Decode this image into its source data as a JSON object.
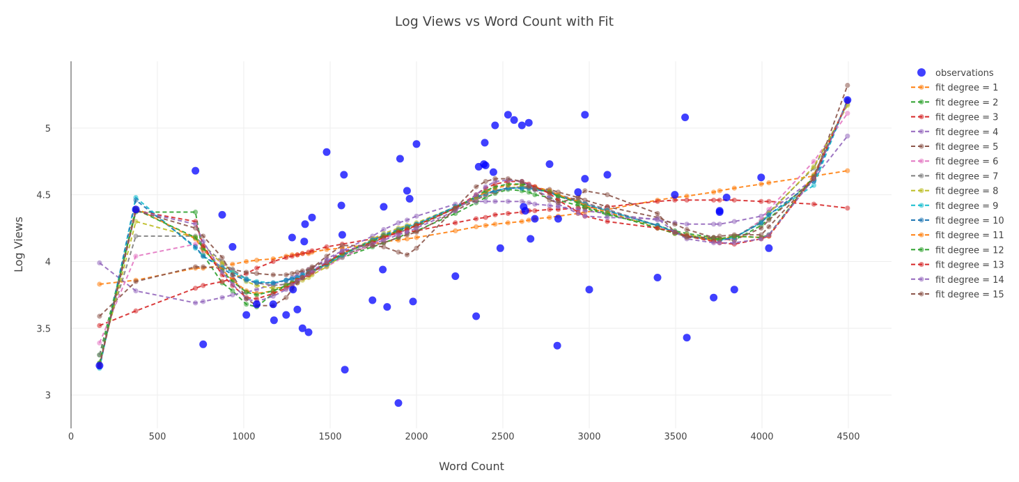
{
  "chart_data": {
    "type": "scatter",
    "title": "Log Views vs Word Count with Fit",
    "xlabel": "Word Count",
    "ylabel": "Log Views",
    "xlim": [
      0,
      4750
    ],
    "ylim": [
      2.75,
      5.5
    ],
    "xticks": [
      0,
      500,
      1000,
      1500,
      2000,
      2500,
      3000,
      3500,
      4000,
      4500
    ],
    "yticks": [
      3,
      3.5,
      4,
      4.5,
      5
    ],
    "grid": true,
    "legend_position": "right",
    "observations": {
      "name": "observations",
      "color": "#0000ff",
      "points": [
        [
          165,
          3.22
        ],
        [
          375,
          4.39
        ],
        [
          720,
          4.68
        ],
        [
          765,
          3.38
        ],
        [
          875,
          4.35
        ],
        [
          935,
          4.11
        ],
        [
          1015,
          3.6
        ],
        [
          1075,
          3.68
        ],
        [
          1170,
          3.68
        ],
        [
          1175,
          3.56
        ],
        [
          1245,
          3.6
        ],
        [
          1280,
          4.18
        ],
        [
          1285,
          3.79
        ],
        [
          1310,
          3.64
        ],
        [
          1340,
          3.5
        ],
        [
          1350,
          4.15
        ],
        [
          1355,
          4.28
        ],
        [
          1375,
          3.47
        ],
        [
          1395,
          4.33
        ],
        [
          1480,
          4.82
        ],
        [
          1565,
          4.42
        ],
        [
          1570,
          4.2
        ],
        [
          1580,
          4.65
        ],
        [
          1585,
          3.19
        ],
        [
          1745,
          3.71
        ],
        [
          1805,
          3.94
        ],
        [
          1810,
          4.41
        ],
        [
          1830,
          3.66
        ],
        [
          1895,
          2.94
        ],
        [
          1905,
          4.77
        ],
        [
          1945,
          4.53
        ],
        [
          1960,
          4.47
        ],
        [
          1980,
          3.7
        ],
        [
          2000,
          4.88
        ],
        [
          2225,
          3.89
        ],
        [
          2345,
          3.59
        ],
        [
          2360,
          4.71
        ],
        [
          2390,
          4.73
        ],
        [
          2395,
          4.89
        ],
        [
          2400,
          4.72
        ],
        [
          2445,
          4.67
        ],
        [
          2455,
          5.02
        ],
        [
          2485,
          4.1
        ],
        [
          2530,
          5.1
        ],
        [
          2565,
          5.06
        ],
        [
          2610,
          5.02
        ],
        [
          2620,
          4.41
        ],
        [
          2630,
          4.38
        ],
        [
          2650,
          5.04
        ],
        [
          2660,
          4.17
        ],
        [
          2685,
          4.32
        ],
        [
          2770,
          4.73
        ],
        [
          2815,
          3.37
        ],
        [
          2820,
          4.32
        ],
        [
          2935,
          4.52
        ],
        [
          2975,
          5.1
        ],
        [
          2975,
          4.62
        ],
        [
          3000,
          3.79
        ],
        [
          3105,
          4.65
        ],
        [
          3395,
          3.88
        ],
        [
          3495,
          4.5
        ],
        [
          3555,
          5.08
        ],
        [
          3565,
          3.43
        ],
        [
          3720,
          3.73
        ],
        [
          3755,
          4.38
        ],
        [
          3755,
          4.37
        ],
        [
          3795,
          4.48
        ],
        [
          3840,
          3.79
        ],
        [
          3995,
          4.63
        ],
        [
          4040,
          4.1
        ],
        [
          4495,
          5.21
        ]
      ]
    },
    "fit_x": [
      165,
      375,
      720,
      765,
      875,
      935,
      1015,
      1075,
      1170,
      1245,
      1280,
      1310,
      1340,
      1375,
      1395,
      1480,
      1570,
      1745,
      1810,
      1895,
      1945,
      2000,
      2225,
      2345,
      2400,
      2455,
      2530,
      2610,
      2650,
      2685,
      2770,
      2820,
      2935,
      2975,
      3105,
      3395,
      3495,
      3565,
      3720,
      3755,
      3840,
      3995,
      4040,
      4300,
      4495
    ],
    "series": [
      {
        "name": "fit degree = 1",
        "color": "#ff7f0e",
        "dash": "6,4",
        "values": [
          3.83,
          3.86,
          3.95,
          3.95,
          3.97,
          3.98,
          4.0,
          4.01,
          4.02,
          4.04,
          4.05,
          4.05,
          4.06,
          4.06,
          4.07,
          4.09,
          4.1,
          4.13,
          4.15,
          4.16,
          4.17,
          4.18,
          4.23,
          4.26,
          4.27,
          4.28,
          4.29,
          4.3,
          4.31,
          4.32,
          4.33,
          4.34,
          4.36,
          4.37,
          4.39,
          4.46,
          4.48,
          4.49,
          4.52,
          4.53,
          4.55,
          4.58,
          4.59,
          4.64,
          4.68
        ]
      },
      {
        "name": "fit degree = 2",
        "color": "#2ca02c",
        "dash": "6,4",
        "values": [
          3.3,
          4.37,
          4.37,
          4.05,
          3.84,
          3.78,
          3.68,
          3.66,
          3.76,
          3.82,
          3.84,
          3.86,
          3.88,
          3.9,
          3.92,
          3.98,
          4.03,
          4.11,
          4.14,
          4.18,
          4.21,
          4.23,
          4.36,
          4.44,
          4.48,
          4.51,
          4.54,
          4.53,
          4.52,
          4.5,
          4.48,
          4.46,
          4.42,
          4.4,
          4.35,
          4.27,
          4.23,
          4.21,
          4.18,
          4.17,
          4.16,
          4.27,
          4.32,
          4.62,
          5.2
        ]
      },
      {
        "name": "fit degree = 3",
        "color": "#d62728",
        "dash": "6,4",
        "values": [
          3.52,
          3.63,
          3.8,
          3.82,
          3.85,
          3.87,
          3.91,
          3.95,
          4.0,
          4.03,
          4.04,
          4.05,
          4.06,
          4.07,
          4.08,
          4.11,
          4.13,
          4.17,
          4.19,
          4.21,
          4.22,
          4.23,
          4.29,
          4.32,
          4.33,
          4.35,
          4.36,
          4.37,
          4.38,
          4.38,
          4.39,
          4.39,
          4.4,
          4.4,
          4.41,
          4.45,
          4.46,
          4.46,
          4.46,
          4.46,
          4.46,
          4.45,
          4.45,
          4.43,
          4.4
        ]
      },
      {
        "name": "fit degree = 4",
        "color": "#9467bd",
        "dash": "6,4",
        "values": [
          3.99,
          3.78,
          3.69,
          3.7,
          3.73,
          3.75,
          3.77,
          3.79,
          3.83,
          3.86,
          3.88,
          3.9,
          3.92,
          3.94,
          3.95,
          4.02,
          4.08,
          4.19,
          4.24,
          4.29,
          4.31,
          4.34,
          4.43,
          4.45,
          4.45,
          4.45,
          4.45,
          4.45,
          4.44,
          4.43,
          4.42,
          4.41,
          4.39,
          4.38,
          4.36,
          4.31,
          4.29,
          4.28,
          4.28,
          4.28,
          4.3,
          4.34,
          4.37,
          4.62,
          4.94
        ]
      },
      {
        "name": "fit degree = 5",
        "color": "#8c564b",
        "dash": "6,4",
        "values": [
          3.59,
          3.85,
          3.96,
          3.96,
          3.95,
          3.94,
          3.92,
          3.91,
          3.9,
          3.9,
          3.91,
          3.92,
          3.93,
          3.94,
          3.96,
          4.0,
          4.05,
          4.12,
          4.14,
          4.18,
          4.2,
          4.22,
          4.38,
          4.46,
          4.5,
          4.52,
          4.55,
          4.56,
          4.56,
          4.55,
          4.54,
          4.52,
          4.48,
          4.46,
          4.41,
          4.33,
          4.28,
          4.24,
          4.18,
          4.17,
          4.16,
          4.25,
          4.31,
          4.62,
          5.2
        ]
      },
      {
        "name": "fit degree = 6",
        "color": "#e377c2",
        "dash": "6,4",
        "values": [
          3.39,
          4.04,
          4.13,
          4.08,
          3.99,
          3.93,
          3.87,
          3.84,
          3.82,
          3.83,
          3.84,
          3.85,
          3.87,
          3.9,
          3.91,
          3.96,
          4.03,
          4.13,
          4.17,
          4.21,
          4.24,
          4.26,
          4.4,
          4.47,
          4.5,
          4.53,
          4.55,
          4.56,
          4.56,
          4.55,
          4.52,
          4.5,
          4.46,
          4.44,
          4.39,
          4.27,
          4.22,
          4.2,
          4.16,
          4.16,
          4.17,
          4.31,
          4.39,
          4.75,
          5.11
        ]
      },
      {
        "name": "fit degree = 7",
        "color": "#7f7f7f",
        "dash": "6,4",
        "values": [
          3.3,
          4.19,
          4.19,
          4.12,
          4.0,
          3.94,
          3.87,
          3.84,
          3.82,
          3.83,
          3.84,
          3.86,
          3.88,
          3.9,
          3.92,
          3.97,
          4.04,
          4.14,
          4.18,
          4.22,
          4.24,
          4.26,
          4.4,
          4.47,
          4.5,
          4.53,
          4.55,
          4.56,
          4.56,
          4.55,
          4.53,
          4.5,
          4.46,
          4.44,
          4.39,
          4.27,
          4.22,
          4.2,
          4.16,
          4.16,
          4.18,
          4.3,
          4.37,
          4.7,
          5.18
        ]
      },
      {
        "name": "fit degree = 8",
        "color": "#bcbd22",
        "dash": "6,4",
        "values": [
          3.24,
          4.3,
          4.18,
          4.1,
          3.99,
          3.92,
          3.85,
          3.82,
          3.8,
          3.81,
          3.82,
          3.84,
          3.86,
          3.88,
          3.9,
          3.96,
          4.05,
          4.17,
          4.21,
          4.25,
          4.27,
          4.29,
          4.41,
          4.48,
          4.51,
          4.53,
          4.55,
          4.56,
          4.55,
          4.54,
          4.52,
          4.49,
          4.45,
          4.43,
          4.38,
          4.27,
          4.22,
          4.2,
          4.17,
          4.17,
          4.18,
          4.29,
          4.36,
          4.71,
          5.17
        ]
      },
      {
        "name": "fit degree = 9",
        "color": "#17becf",
        "dash": "6,4",
        "values": [
          3.2,
          4.48,
          4.1,
          4.04,
          3.96,
          3.92,
          3.87,
          3.85,
          3.84,
          3.86,
          3.87,
          3.88,
          3.9,
          3.92,
          3.93,
          3.98,
          4.05,
          4.16,
          4.19,
          4.23,
          4.26,
          4.28,
          4.41,
          4.48,
          4.51,
          4.53,
          4.55,
          4.55,
          4.55,
          4.54,
          4.52,
          4.49,
          4.45,
          4.43,
          4.38,
          4.27,
          4.22,
          4.19,
          4.16,
          4.16,
          4.18,
          4.29,
          4.35,
          4.57,
          5.21
        ]
      },
      {
        "name": "fit degree = 10",
        "color": "#1f77b4",
        "dash": "6,4",
        "values": [
          3.21,
          4.46,
          4.11,
          4.04,
          3.95,
          3.9,
          3.86,
          3.84,
          3.84,
          3.86,
          3.87,
          3.88,
          3.9,
          3.92,
          3.93,
          3.98,
          4.05,
          4.16,
          4.2,
          4.24,
          4.26,
          4.28,
          4.41,
          4.48,
          4.51,
          4.53,
          4.55,
          4.55,
          4.55,
          4.54,
          4.52,
          4.49,
          4.45,
          4.43,
          4.38,
          4.27,
          4.22,
          4.19,
          4.16,
          4.16,
          4.18,
          4.29,
          4.35,
          4.6,
          5.21
        ]
      },
      {
        "name": "fit degree = 11",
        "color": "#ff7f0e",
        "dash": "6,4",
        "values": [
          3.23,
          4.4,
          4.17,
          4.09,
          3.94,
          3.86,
          3.78,
          3.76,
          3.78,
          3.82,
          3.84,
          3.86,
          3.88,
          3.91,
          3.93,
          3.99,
          4.06,
          4.15,
          4.19,
          4.23,
          4.25,
          4.27,
          4.4,
          4.48,
          4.52,
          4.55,
          4.57,
          4.58,
          4.57,
          4.56,
          4.53,
          4.5,
          4.45,
          4.42,
          4.37,
          4.25,
          4.21,
          4.19,
          4.16,
          4.17,
          4.19,
          4.18,
          4.19,
          4.65,
          5.2
        ]
      },
      {
        "name": "fit degree = 12",
        "color": "#2ca02c",
        "dash": "6,4",
        "values": [
          3.24,
          4.39,
          4.18,
          4.1,
          3.93,
          3.85,
          3.77,
          3.75,
          3.78,
          3.82,
          3.84,
          3.86,
          3.88,
          3.91,
          3.93,
          3.99,
          4.06,
          4.15,
          4.19,
          4.23,
          4.25,
          4.27,
          4.4,
          4.49,
          4.53,
          4.56,
          4.58,
          4.58,
          4.57,
          4.55,
          4.52,
          4.49,
          4.44,
          4.41,
          4.36,
          4.25,
          4.21,
          4.19,
          4.17,
          4.17,
          4.19,
          4.18,
          4.2,
          4.64,
          5.2
        ]
      },
      {
        "name": "fit degree = 13",
        "color": "#d62728",
        "dash": "6,4",
        "values": [
          3.22,
          4.38,
          4.3,
          4.12,
          3.9,
          3.82,
          3.73,
          3.72,
          3.76,
          3.8,
          3.83,
          3.86,
          3.88,
          3.9,
          3.92,
          3.99,
          4.07,
          4.14,
          4.18,
          4.22,
          4.24,
          4.27,
          4.4,
          4.5,
          4.55,
          4.58,
          4.6,
          4.6,
          4.58,
          4.56,
          4.51,
          4.46,
          4.37,
          4.34,
          4.3,
          4.25,
          4.22,
          4.19,
          4.15,
          4.14,
          4.13,
          4.17,
          4.19,
          4.63,
          5.2
        ]
      },
      {
        "name": "fit degree = 14",
        "color": "#9467bd",
        "dash": "6,4",
        "values": [
          3.22,
          4.38,
          4.28,
          4.15,
          3.92,
          3.83,
          3.72,
          3.7,
          3.74,
          3.79,
          3.82,
          3.85,
          3.88,
          3.91,
          3.93,
          4.0,
          4.08,
          4.13,
          4.16,
          4.2,
          4.22,
          4.25,
          4.38,
          4.5,
          4.56,
          4.6,
          4.61,
          4.6,
          4.57,
          4.54,
          4.48,
          4.43,
          4.36,
          4.34,
          4.33,
          4.32,
          4.22,
          4.17,
          4.14,
          4.14,
          4.14,
          4.17,
          4.2,
          4.62,
          5.2
        ]
      },
      {
        "name": "fit degree = 15",
        "color": "#8c564b",
        "dash": "6,4",
        "values": [
          3.22,
          4.38,
          4.25,
          4.19,
          4.03,
          3.9,
          3.72,
          3.67,
          3.67,
          3.73,
          3.79,
          3.84,
          3.88,
          3.92,
          3.95,
          4.04,
          4.12,
          4.12,
          4.11,
          4.07,
          4.05,
          4.1,
          4.4,
          4.56,
          4.6,
          4.62,
          4.62,
          4.6,
          4.56,
          4.54,
          4.46,
          4.44,
          4.48,
          4.53,
          4.5,
          4.36,
          4.22,
          4.18,
          4.18,
          4.19,
          4.2,
          4.2,
          4.26,
          4.62,
          5.32
        ]
      }
    ]
  }
}
